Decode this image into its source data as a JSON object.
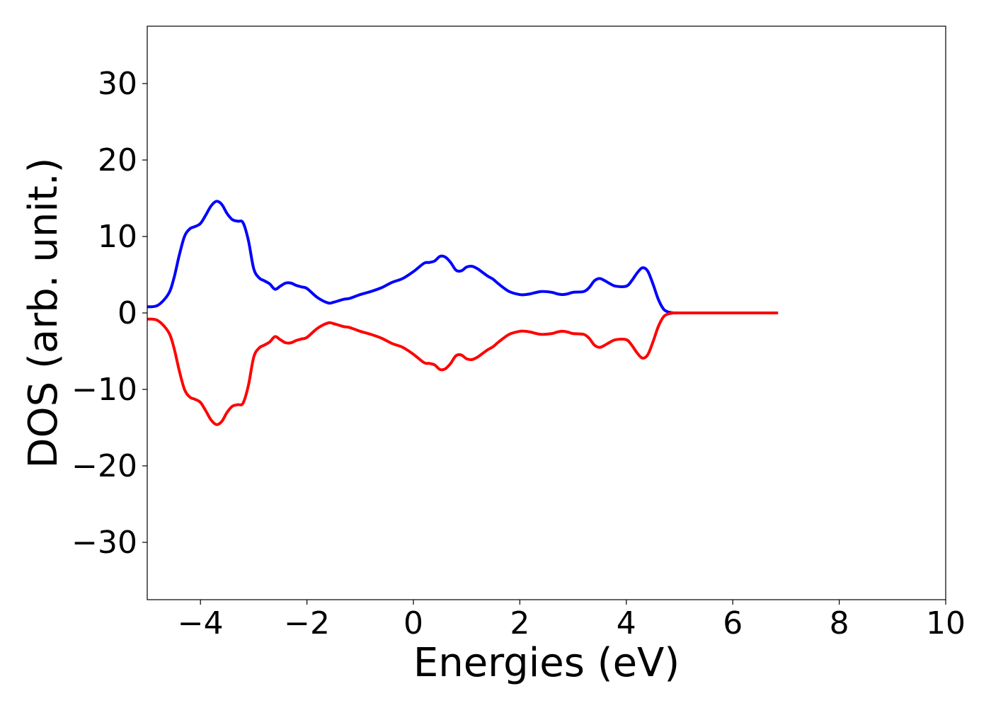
{
  "chart_data": {
    "type": "line",
    "title": "",
    "xlabel": "Energies (eV)",
    "ylabel": "DOS (arb. unit.)",
    "xlim": [
      -5,
      10
    ],
    "ylim": [
      -37.5,
      37.5
    ],
    "xticks": [
      -4,
      -2,
      0,
      2,
      4,
      6,
      8,
      10
    ],
    "xtick_labels": [
      "−4",
      "−2",
      "0",
      "2",
      "4",
      "6",
      "8",
      "10"
    ],
    "yticks": [
      -30,
      -20,
      -10,
      0,
      10,
      20,
      30
    ],
    "ytick_labels": [
      "−30",
      "−20",
      "−10",
      "0",
      "10",
      "20",
      "30"
    ],
    "grid": false,
    "legend": "none",
    "series": [
      {
        "color": "#0000ff",
        "x": [
          -5.0,
          -4.8,
          -4.6,
          -4.5,
          -4.4,
          -4.3,
          -4.2,
          -4.1,
          -4.0,
          -3.9,
          -3.8,
          -3.7,
          -3.6,
          -3.5,
          -3.4,
          -3.3,
          -3.2,
          -3.1,
          -3.0,
          -2.9,
          -2.8,
          -2.7,
          -2.6,
          -2.5,
          -2.4,
          -2.3,
          -2.2,
          -2.1,
          -2.0,
          -1.8,
          -1.6,
          -1.5,
          -1.4,
          -1.3,
          -1.2,
          -1.0,
          -0.8,
          -0.6,
          -0.4,
          -0.2,
          0.0,
          0.2,
          0.3,
          0.4,
          0.5,
          0.6,
          0.7,
          0.8,
          0.9,
          1.0,
          1.1,
          1.2,
          1.3,
          1.4,
          1.5,
          1.6,
          1.8,
          2.0,
          2.1,
          2.2,
          2.4,
          2.6,
          2.7,
          2.8,
          2.9,
          3.0,
          3.2,
          3.3,
          3.4,
          3.5,
          3.6,
          3.7,
          3.8,
          4.0,
          4.1,
          4.2,
          4.3,
          4.4,
          4.5,
          4.6,
          4.7,
          4.8,
          4.9,
          5.0,
          5.1,
          5.2,
          5.5,
          6.0,
          6.5,
          6.85
        ],
        "y": [
          0.8,
          1.0,
          2.5,
          4.5,
          7.5,
          10.0,
          11.0,
          11.3,
          11.7,
          12.8,
          14.0,
          14.6,
          14.2,
          13.0,
          12.2,
          12.0,
          11.8,
          9.5,
          5.8,
          4.6,
          4.2,
          3.8,
          3.1,
          3.5,
          3.9,
          3.9,
          3.6,
          3.4,
          3.2,
          2.0,
          1.3,
          1.4,
          1.6,
          1.8,
          1.9,
          2.4,
          2.8,
          3.3,
          4.0,
          4.5,
          5.4,
          6.5,
          6.6,
          6.8,
          7.4,
          7.3,
          6.6,
          5.6,
          5.5,
          6.0,
          6.1,
          5.8,
          5.3,
          4.8,
          4.4,
          3.8,
          2.8,
          2.4,
          2.4,
          2.5,
          2.8,
          2.7,
          2.5,
          2.4,
          2.5,
          2.7,
          2.8,
          3.3,
          4.2,
          4.5,
          4.2,
          3.8,
          3.5,
          3.5,
          4.2,
          5.2,
          5.9,
          5.5,
          3.8,
          1.8,
          0.5,
          0.1,
          0.0,
          0.0,
          0.0,
          0.0,
          0.0,
          0.0,
          0.0,
          0.0
        ]
      },
      {
        "color": "#ff0000",
        "x": [
          -5.0,
          -4.8,
          -4.6,
          -4.5,
          -4.4,
          -4.3,
          -4.2,
          -4.1,
          -4.0,
          -3.9,
          -3.8,
          -3.7,
          -3.6,
          -3.5,
          -3.4,
          -3.3,
          -3.2,
          -3.1,
          -3.0,
          -2.9,
          -2.8,
          -2.7,
          -2.6,
          -2.5,
          -2.4,
          -2.3,
          -2.2,
          -2.1,
          -2.0,
          -1.8,
          -1.6,
          -1.5,
          -1.4,
          -1.3,
          -1.2,
          -1.0,
          -0.8,
          -0.6,
          -0.4,
          -0.2,
          0.0,
          0.2,
          0.3,
          0.4,
          0.5,
          0.6,
          0.7,
          0.8,
          0.9,
          1.0,
          1.1,
          1.2,
          1.3,
          1.4,
          1.5,
          1.6,
          1.8,
          2.0,
          2.1,
          2.2,
          2.4,
          2.6,
          2.7,
          2.8,
          2.9,
          3.0,
          3.2,
          3.3,
          3.4,
          3.5,
          3.6,
          3.7,
          3.8,
          4.0,
          4.1,
          4.2,
          4.3,
          4.4,
          4.5,
          4.6,
          4.7,
          4.8,
          4.9,
          5.0,
          5.1,
          5.2,
          5.5,
          6.0,
          6.5,
          6.85
        ],
        "y": [
          -0.8,
          -1.0,
          -2.5,
          -4.5,
          -7.5,
          -10.0,
          -11.0,
          -11.3,
          -11.7,
          -12.8,
          -14.0,
          -14.6,
          -14.2,
          -13.0,
          -12.2,
          -12.0,
          -11.8,
          -9.5,
          -5.8,
          -4.6,
          -4.2,
          -3.8,
          -3.1,
          -3.5,
          -3.9,
          -3.9,
          -3.6,
          -3.4,
          -3.2,
          -2.0,
          -1.3,
          -1.4,
          -1.6,
          -1.8,
          -1.9,
          -2.4,
          -2.8,
          -3.3,
          -4.0,
          -4.5,
          -5.4,
          -6.5,
          -6.6,
          -6.8,
          -7.4,
          -7.3,
          -6.6,
          -5.6,
          -5.5,
          -6.0,
          -6.1,
          -5.8,
          -5.3,
          -4.8,
          -4.4,
          -3.8,
          -2.8,
          -2.4,
          -2.4,
          -2.5,
          -2.8,
          -2.7,
          -2.5,
          -2.4,
          -2.5,
          -2.7,
          -2.8,
          -3.3,
          -4.2,
          -4.5,
          -4.2,
          -3.8,
          -3.5,
          -3.5,
          -4.2,
          -5.2,
          -5.9,
          -5.5,
          -3.8,
          -1.8,
          -0.5,
          -0.1,
          0.0,
          0.0,
          0.0,
          0.0,
          0.0,
          0.0,
          0.0,
          0.0
        ]
      }
    ]
  }
}
